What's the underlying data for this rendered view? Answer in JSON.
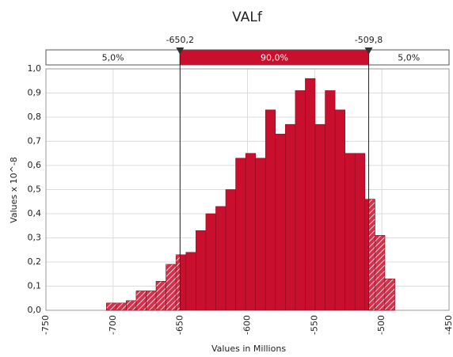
{
  "chart_data": {
    "type": "histogram",
    "title": "VALf",
    "x_label": "Values in Millions",
    "y_label": "Values x 10^-8",
    "bins": [
      -705,
      -697.6,
      -690.2,
      -682.8,
      -675.4,
      -668,
      -660.6,
      -653.2,
      -645.8,
      -638.4,
      -631,
      -623.6,
      -616.2,
      -608.8,
      -601.4,
      -594,
      -586.6,
      -579.2,
      -571.8,
      -564.4,
      -557,
      -549.6,
      -542.2,
      -534.8,
      -527.4,
      -520,
      -512.6,
      -505.2,
      -497.8,
      -490.4
    ],
    "values": [
      0.03,
      0.03,
      0.04,
      0.08,
      0.08,
      0.12,
      0.19,
      0.23,
      0.24,
      0.33,
      0.4,
      0.43,
      0.5,
      0.63,
      0.65,
      0.63,
      0.83,
      0.73,
      0.77,
      0.91,
      0.96,
      0.77,
      0.91,
      0.83,
      0.65,
      0.65,
      0.46,
      0.31,
      0.13
    ],
    "color": "#c8102e",
    "xlim": [
      -750,
      -450
    ],
    "xticks": [
      -750,
      -700,
      -650,
      -600,
      -550,
      -500,
      -450
    ],
    "ylim": [
      0,
      1.0
    ],
    "yticks": [
      {
        "value": 0,
        "label": "0,0"
      },
      {
        "value": 0.1,
        "label": "0,1"
      },
      {
        "value": 0.2,
        "label": "0,2"
      },
      {
        "value": 0.3,
        "label": "0,3"
      },
      {
        "value": 0.4,
        "label": "0,4"
      },
      {
        "value": 0.5,
        "label": "0,5"
      },
      {
        "value": 0.6,
        "label": "0,6"
      },
      {
        "value": 0.7,
        "label": "0,7"
      },
      {
        "value": 0.8,
        "label": "0,8"
      },
      {
        "value": 0.9,
        "label": "0,9"
      },
      {
        "value": 1.0,
        "label": "1,0"
      }
    ],
    "grid": true,
    "delimiters": [
      {
        "value": -650.2,
        "label": "-650,2"
      },
      {
        "value": -509.8,
        "label": "-509,8"
      }
    ],
    "percentiles": {
      "values": [
        5,
        90,
        5
      ],
      "value_labels": [
        "5,0%",
        "90,0%",
        "5,0%"
      ]
    }
  }
}
